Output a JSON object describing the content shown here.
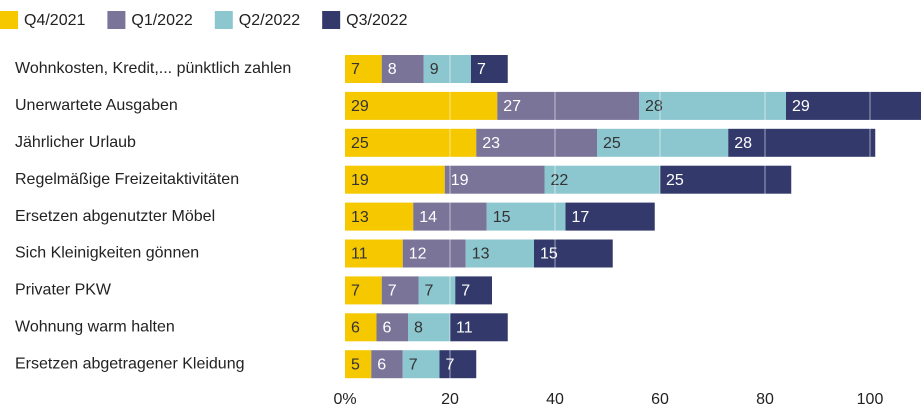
{
  "chart_data": {
    "type": "stacked_barh",
    "categories": [
      "Wohnkosten, Kredit,... pünktlich zahlen",
      "Unerwartete Ausgaben",
      "Jährlicher Urlaub",
      "Regelmäßige Freizeitaktivitäten",
      "Ersetzen abgenutzter Möbel",
      "Sich Kleinigkeiten gönnen",
      "Privater PKW",
      "Wohnung warm halten",
      "Ersetzen abgetragener Kleidung"
    ],
    "series": [
      {
        "name": "Q4/2021",
        "color": "#f5c800",
        "values": [
          7,
          29,
          25,
          19,
          13,
          11,
          7,
          6,
          5
        ]
      },
      {
        "name": "Q1/2022",
        "color": "#7b7499",
        "values": [
          8,
          27,
          23,
          19,
          14,
          12,
          7,
          6,
          6
        ]
      },
      {
        "name": "Q2/2022",
        "color": "#8cc6cf",
        "values": [
          9,
          28,
          25,
          22,
          15,
          13,
          7,
          8,
          7
        ]
      },
      {
        "name": "Q3/2022",
        "color": "#333a6b",
        "values": [
          7,
          29,
          28,
          25,
          17,
          15,
          7,
          11,
          7
        ]
      }
    ],
    "xlim": [
      0,
      110
    ],
    "xticks": [
      {
        "value": 0,
        "label": "0%"
      },
      20,
      40,
      60,
      80,
      100
    ],
    "grid": true,
    "legend": "top-left"
  }
}
